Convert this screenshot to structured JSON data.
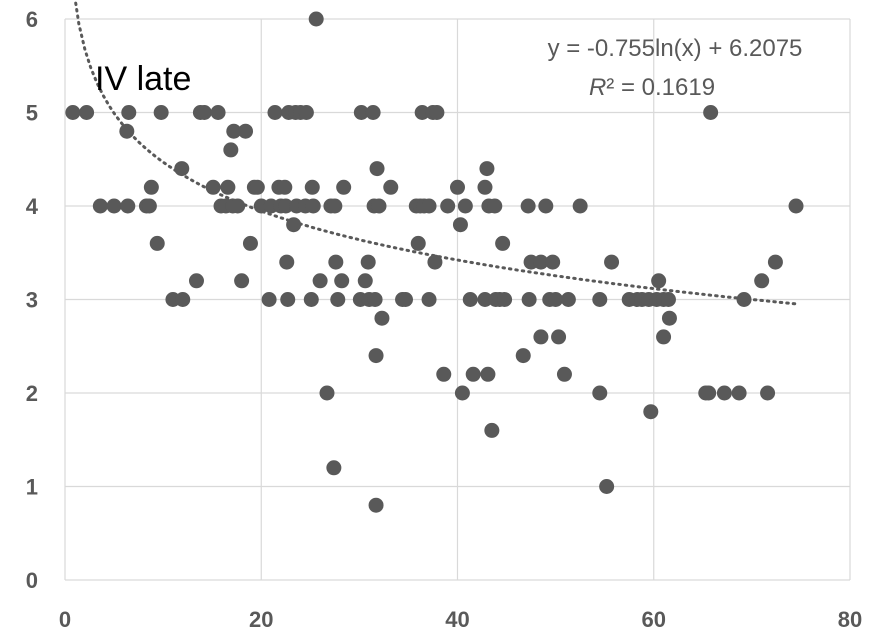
{
  "chart_data": {
    "type": "scatter",
    "title": "IV late",
    "xlabel": "",
    "ylabel": "",
    "xlim": [
      0,
      80
    ],
    "ylim": [
      0,
      6
    ],
    "x_ticks": [
      0,
      20,
      40,
      60,
      80
    ],
    "y_ticks": [
      0,
      1,
      2,
      3,
      4,
      5,
      6
    ],
    "x_tick_labels": [
      "0",
      "20",
      "40",
      "60",
      "80"
    ],
    "y_tick_labels": [
      "0",
      "1",
      "2",
      "3",
      "4",
      "5",
      "6"
    ],
    "grid": true,
    "colors": {
      "points": "#595959",
      "trendline": "#595959",
      "grid": "#d9d9d9",
      "text": "#595959"
    },
    "trendline": {
      "type": "logarithmic",
      "equation": "y = -0.755ln(x) + 6.2075",
      "r2_label": "R",
      "r2_value": "² = 0.1619",
      "a": -0.755,
      "b": 6.2075,
      "x_range": [
        0.8,
        74.5
      ]
    },
    "series": [
      {
        "points": [
          [
            0.8,
            5.0
          ],
          [
            2.2,
            5.0
          ],
          [
            3.6,
            4.0
          ],
          [
            5.0,
            4.0
          ],
          [
            6.3,
            4.8
          ],
          [
            6.5,
            5.0
          ],
          [
            6.4,
            4.0
          ],
          [
            8.3,
            4.0
          ],
          [
            8.8,
            4.2
          ],
          [
            8.6,
            4.0
          ],
          [
            9.4,
            3.6
          ],
          [
            9.8,
            5.0
          ],
          [
            11.0,
            3.0
          ],
          [
            12.0,
            3.0
          ],
          [
            11.9,
            4.4
          ],
          [
            13.4,
            3.2
          ],
          [
            13.8,
            5.0
          ],
          [
            14.2,
            5.0
          ],
          [
            15.1,
            4.2
          ],
          [
            15.6,
            5.0
          ],
          [
            15.9,
            4.0
          ],
          [
            16.4,
            4.0
          ],
          [
            16.6,
            4.2
          ],
          [
            16.9,
            4.6
          ],
          [
            17.1,
            4.0
          ],
          [
            17.2,
            4.8
          ],
          [
            17.6,
            4.0
          ],
          [
            18.0,
            3.2
          ],
          [
            18.4,
            4.8
          ],
          [
            18.9,
            3.6
          ],
          [
            19.3,
            4.2
          ],
          [
            19.6,
            4.2
          ],
          [
            20.0,
            4.0
          ],
          [
            20.8,
            3.0
          ],
          [
            21.0,
            4.0
          ],
          [
            21.4,
            5.0
          ],
          [
            21.8,
            4.2
          ],
          [
            22.0,
            4.0
          ],
          [
            22.4,
            4.2
          ],
          [
            22.5,
            4.0
          ],
          [
            22.6,
            3.4
          ],
          [
            22.8,
            5.0
          ],
          [
            22.7,
            3.0
          ],
          [
            23.3,
            3.8
          ],
          [
            23.5,
            5.0
          ],
          [
            23.6,
            4.0
          ],
          [
            24.0,
            5.0
          ],
          [
            24.5,
            4.0
          ],
          [
            24.6,
            5.0
          ],
          [
            25.1,
            3.0
          ],
          [
            25.2,
            4.2
          ],
          [
            25.6,
            6.0
          ],
          [
            25.3,
            4.0
          ],
          [
            26.0,
            3.2
          ],
          [
            26.7,
            2.0
          ],
          [
            27.1,
            4.0
          ],
          [
            27.5,
            4.0
          ],
          [
            27.6,
            3.4
          ],
          [
            27.4,
            1.2
          ],
          [
            27.8,
            3.0
          ],
          [
            28.2,
            3.2
          ],
          [
            28.4,
            4.2
          ],
          [
            30.2,
            5.0
          ],
          [
            30.1,
            3.0
          ],
          [
            30.6,
            3.2
          ],
          [
            30.9,
            3.4
          ],
          [
            31.0,
            3.0
          ],
          [
            31.4,
            5.0
          ],
          [
            31.5,
            4.0
          ],
          [
            31.6,
            3.0
          ],
          [
            31.7,
            2.4
          ],
          [
            31.7,
            0.8
          ],
          [
            31.8,
            4.4
          ],
          [
            32.0,
            4.0
          ],
          [
            32.3,
            2.8
          ],
          [
            33.2,
            4.2
          ],
          [
            34.4,
            3.0
          ],
          [
            34.7,
            3.0
          ],
          [
            35.8,
            4.0
          ],
          [
            36.0,
            3.6
          ],
          [
            36.2,
            4.0
          ],
          [
            36.4,
            5.0
          ],
          [
            36.6,
            4.0
          ],
          [
            37.1,
            4.0
          ],
          [
            37.1,
            3.0
          ],
          [
            37.5,
            5.0
          ],
          [
            37.7,
            3.4
          ],
          [
            37.9,
            5.0
          ],
          [
            38.6,
            2.2
          ],
          [
            39.0,
            4.0
          ],
          [
            40.0,
            4.2
          ],
          [
            40.3,
            3.8
          ],
          [
            40.5,
            2.0
          ],
          [
            40.8,
            4.0
          ],
          [
            41.3,
            3.0
          ],
          [
            41.6,
            2.2
          ],
          [
            42.8,
            3.0
          ],
          [
            42.8,
            4.2
          ],
          [
            43.0,
            4.4
          ],
          [
            43.1,
            2.2
          ],
          [
            43.2,
            4.0
          ],
          [
            43.5,
            1.6
          ],
          [
            43.8,
            4.0
          ],
          [
            43.9,
            3.0
          ],
          [
            44.3,
            3.0
          ],
          [
            44.6,
            3.6
          ],
          [
            44.8,
            3.0
          ],
          [
            46.7,
            2.4
          ],
          [
            47.3,
            3.0
          ],
          [
            47.2,
            4.0
          ],
          [
            47.5,
            3.4
          ],
          [
            48.5,
            3.4
          ],
          [
            48.5,
            2.6
          ],
          [
            49.0,
            4.0
          ],
          [
            49.4,
            3.0
          ],
          [
            49.7,
            3.4
          ],
          [
            50.0,
            3.0
          ],
          [
            50.3,
            2.6
          ],
          [
            50.9,
            2.2
          ],
          [
            51.3,
            3.0
          ],
          [
            52.5,
            4.0
          ],
          [
            54.5,
            3.0
          ],
          [
            54.5,
            2.0
          ],
          [
            55.2,
            1.0
          ],
          [
            55.7,
            3.4
          ],
          [
            57.5,
            3.0
          ],
          [
            58.3,
            3.0
          ],
          [
            58.8,
            3.0
          ],
          [
            59.5,
            3.0
          ],
          [
            59.7,
            1.8
          ],
          [
            60.3,
            3.0
          ],
          [
            60.5,
            3.2
          ],
          [
            61.0,
            3.0
          ],
          [
            61.0,
            2.6
          ],
          [
            61.5,
            3.0
          ],
          [
            61.6,
            2.8
          ],
          [
            65.3,
            2.0
          ],
          [
            65.6,
            2.0
          ],
          [
            65.8,
            5.0
          ],
          [
            67.2,
            2.0
          ],
          [
            68.7,
            2.0
          ],
          [
            69.2,
            3.0
          ],
          [
            71.0,
            3.2
          ],
          [
            71.6,
            2.0
          ],
          [
            72.4,
            3.4
          ],
          [
            74.5,
            4.0
          ]
        ]
      }
    ]
  }
}
